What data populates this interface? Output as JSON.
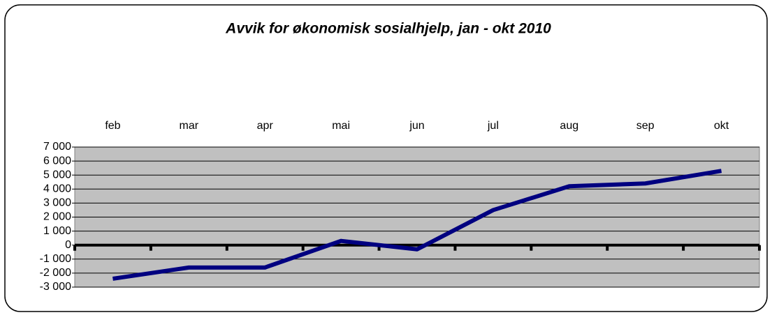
{
  "chart_data": {
    "type": "line",
    "title": "Avvik for økonomisk sosialhjelp, jan - okt 2010",
    "categories": [
      "feb",
      "mar",
      "apr",
      "mai",
      "jun",
      "jul",
      "aug",
      "sep",
      "okt"
    ],
    "series": [
      {
        "color": "#000080",
        "values": [
          -2400,
          -1600,
          -1600,
          300,
          -300,
          2500,
          4200,
          4400,
          5300
        ]
      }
    ],
    "ylim": [
      -3000,
      7000
    ],
    "yticks": [
      {
        "value": -3000,
        "label": "-3 000"
      },
      {
        "value": -2000,
        "label": "-2 000"
      },
      {
        "value": -1000,
        "label": "-1 000"
      },
      0,
      {
        "value": 1000,
        "label": "1 000"
      },
      {
        "value": 2000,
        "label": "2 000"
      },
      {
        "value": 3000,
        "label": "3 000"
      },
      {
        "value": 4000,
        "label": "4 000"
      },
      {
        "value": 5000,
        "label": "5 000"
      },
      {
        "value": 6000,
        "label": "6 000"
      },
      {
        "value": 7000,
        "label": "7 000"
      }
    ],
    "grid": true
  }
}
